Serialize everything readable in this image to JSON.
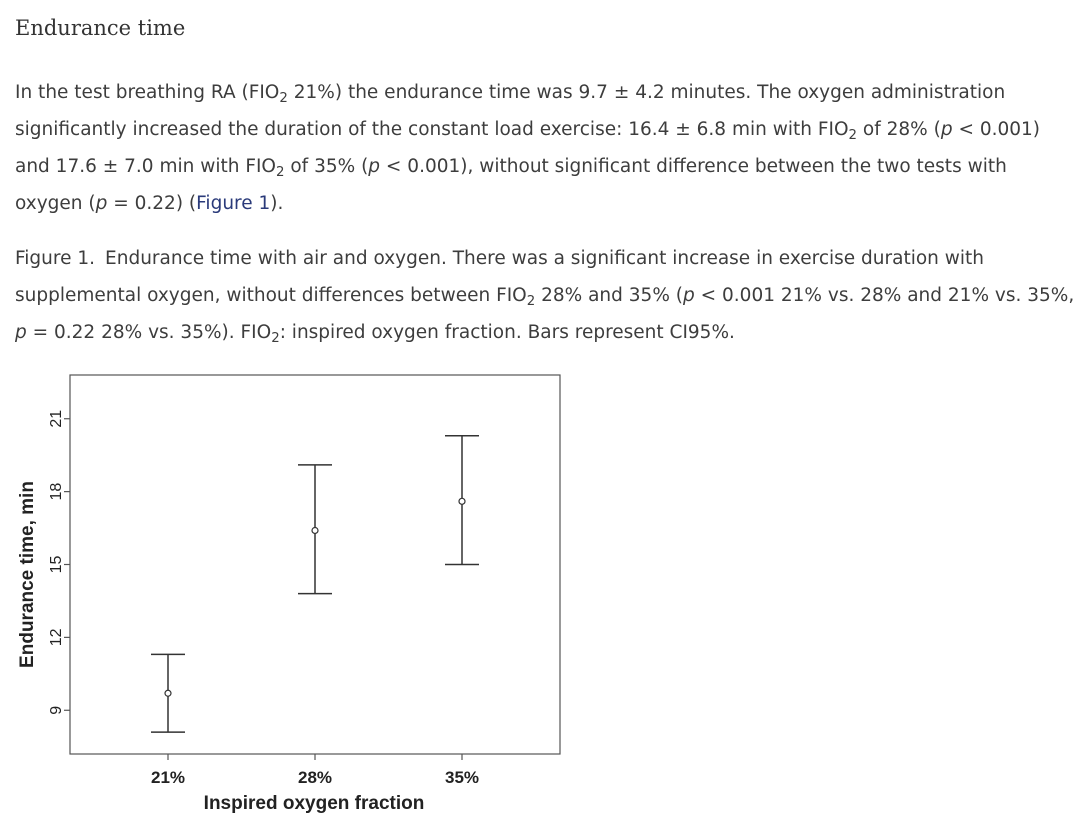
{
  "section": {
    "heading": "Endurance time"
  },
  "body_paragraph": {
    "l1_a": "In the test breathing RA (FIO",
    "l1_sub": "2",
    "l1_b": " 21%) the endurance time was 9.7 ± 4.2 minutes. The oxygen administration",
    "l2_a": "significantly increased the duration of the constant load exercise: 16.4 ± 6.8 min with FIO",
    "l2_sub": "2",
    "l2_b": " of 28% (",
    "l2_p": "p",
    "l2_c": " < 0.001)",
    "l3_a": "and 17.6 ± 7.0 min with FIO",
    "l3_sub": "2",
    "l3_b": " of 35% (",
    "l3_p": "p",
    "l3_c": " < 0.001), without significant difference between the two tests with",
    "l4_a": "oxygen (",
    "l4_p": "p",
    "l4_b": " = 0.22) (",
    "l4_link": "Figure 1",
    "l4_c": ")."
  },
  "figure_caption": {
    "label": "Figure 1.",
    "l1": "Endurance time with air and oxygen. There was a significant increase in exercise duration with",
    "l2_a": "supplemental oxygen, without differences between FIO",
    "l2_sub1": "2",
    "l2_b": " 28% and 35% (",
    "l2_p": "p",
    "l2_c": " < 0.001 21% vs. 28% and 21% vs. 35%,",
    "l3_p": "p",
    "l3_a": " = 0.22 28% vs. 35%). FIO",
    "l3_sub": "2",
    "l3_b": ": inspired oxygen fraction. Bars represent CI95%."
  },
  "chart_data": {
    "type": "errorbar",
    "xlabel": "Inspired oxygen fraction",
    "ylabel": "Endurance time, min",
    "categories": [
      "21%",
      "28%",
      "35%"
    ],
    "means": [
      9.7,
      16.4,
      17.6
    ],
    "ci_lower": [
      8.1,
      13.8,
      15.0
    ],
    "ci_upper": [
      11.3,
      19.1,
      20.3
    ],
    "yticks": [
      9,
      12,
      15,
      18,
      21
    ],
    "ylim": [
      7.2,
      22.8
    ],
    "grid": false,
    "legend": "none",
    "colors": {
      "marks": "#333333",
      "frame": "#555555"
    }
  }
}
